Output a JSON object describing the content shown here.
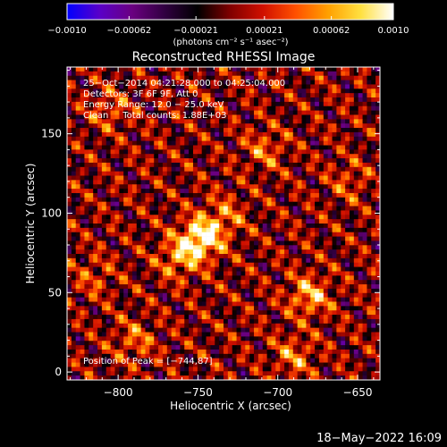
{
  "chart_data": {
    "type": "heatmap",
    "title": "Reconstructed RHESSI Image",
    "xlabel": "Heliocentric X (arcsec)",
    "ylabel": "Heliocentric Y (arcsec)",
    "xlim": [
      -832,
      -636
    ],
    "ylim": [
      -5,
      192
    ],
    "x_ticks": [
      -800,
      -750,
      -700,
      -650
    ],
    "x_tick_labels": [
      "−800",
      "−750",
      "−700",
      "−650"
    ],
    "y_ticks": [
      0,
      50,
      100,
      150
    ],
    "y_tick_labels": [
      "0",
      "50",
      "100",
      "150"
    ],
    "colorbar": {
      "min": -0.001,
      "max": 0.001,
      "ticks": [
        -0.001,
        -0.00062,
        -0.00021,
        0.00021,
        0.00062,
        0.001
      ],
      "tick_labels": [
        "−0.0010",
        "−0.00062",
        "−0.00021",
        "0.00021",
        "0.00062",
        "0.0010"
      ],
      "units_label": "(photons cm⁻² s⁻¹ asec⁻²)",
      "colormap": [
        "#0000ff",
        "#5a00c8",
        "#6a0080",
        "#300040",
        "#000000",
        "#800000",
        "#d01000",
        "#ff5000",
        "#ffa000",
        "#ffe040",
        "#ffffff"
      ]
    },
    "annotations": [
      "25−Oct−2014 04:21:28.000 to 04:25:04.000",
      "Detectors: 3F 6F 9F, Att 0",
      "Energy Range: 12.0 − 25.0 keV",
      "Clean     Total counts: 1.88E+03"
    ],
    "peak_label": "Position of Peak = [−744,87]",
    "peak_position": [
      -744,
      87
    ],
    "sources": [
      {
        "x": -748,
        "y": 84,
        "amplitude": 0.001
      },
      {
        "x": -762,
        "y": 72,
        "amplitude": 0.00055
      },
      {
        "x": -733,
        "y": 98,
        "amplitude": 0.0004
      },
      {
        "x": -680,
        "y": 48,
        "amplitude": 0.00065
      },
      {
        "x": -690,
        "y": 10,
        "amplitude": 0.00045
      },
      {
        "x": -708,
        "y": 140,
        "amplitude": 0.0004
      },
      {
        "x": -805,
        "y": 165,
        "amplitude": 0.00035
      },
      {
        "x": -790,
        "y": 20,
        "amplitude": 0.0004
      },
      {
        "x": -815,
        "y": 60,
        "amplitude": 0.0003
      },
      {
        "x": -655,
        "y": 120,
        "amplitude": 0.0003
      }
    ]
  },
  "timestamp": "18−May−2022 16:09"
}
